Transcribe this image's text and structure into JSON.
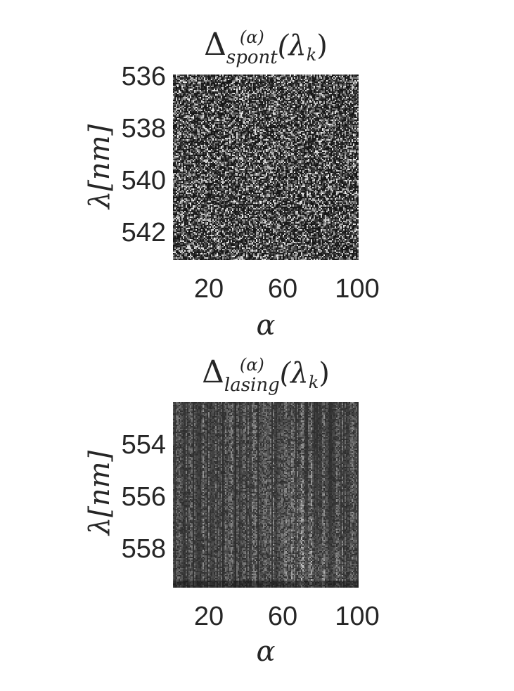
{
  "chart_data": [
    {
      "type": "heatmap",
      "title": "Δ_spont^(α)(λ_k)",
      "title_parts": {
        "base": "Δ",
        "sup": "(α)",
        "sub": "spont",
        "arg": "(λ",
        "arg_sub": "k",
        "arg_end": ")"
      },
      "xlabel": "α",
      "ylabel": "λ[nm]",
      "xticks": [
        "20",
        "60",
        "100"
      ],
      "xtick_values": [
        20,
        60,
        100
      ],
      "xlim": [
        0,
        100
      ],
      "yticks": [
        "536",
        "538",
        "540",
        "542"
      ],
      "ytick_values": [
        536,
        538,
        540,
        542
      ],
      "ylim": [
        536,
        543
      ],
      "colormap": "gray",
      "texture": "uniform-noise",
      "mean_intensity": 0.18
    },
    {
      "type": "heatmap",
      "title": "Δ_lasing^(α)(λ_k)",
      "title_parts": {
        "base": "Δ",
        "sup": "(α)",
        "sub": "lasing",
        "arg": "(λ",
        "arg_sub": "k",
        "arg_end": ")"
      },
      "xlabel": "α",
      "ylabel": "λ[nm]",
      "xticks": [
        "20",
        "60",
        "100"
      ],
      "xtick_values": [
        20,
        60,
        100
      ],
      "xlim": [
        0,
        100
      ],
      "yticks": [
        "554",
        "556",
        "558"
      ],
      "ytick_values": [
        554,
        556,
        558
      ],
      "ylim": [
        552.7,
        559.6
      ],
      "colormap": "gray",
      "texture": "vertical-streaks",
      "mean_intensity": 0.2
    }
  ]
}
